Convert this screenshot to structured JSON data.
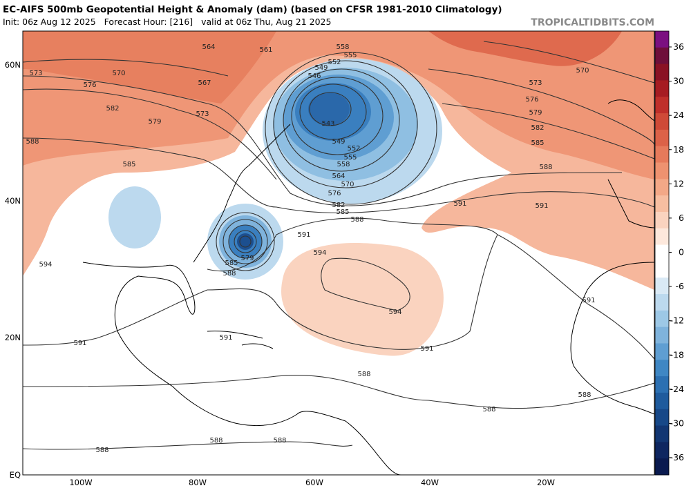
{
  "header": {
    "title": "EC-AIFS 500mb Geopotential Height & Anomaly (dam) (based on CFSR 1981-2010 Climatology)",
    "subtitle": "Init: 06z Aug 12 2025   Forecast Hour: [216]   valid at 06z Thu, Aug 21 2025",
    "site": "TROPICALTIDBITS.COM"
  },
  "lat_labels": [
    "60N",
    "40N",
    "20N",
    "EQ"
  ],
  "lon_labels": [
    "100W",
    "80W",
    "60W",
    "40W",
    "20W"
  ],
  "colorbar": {
    "labels": [
      36,
      30,
      24,
      18,
      12,
      6,
      0,
      -6,
      -12,
      -18,
      -24,
      -30,
      -36
    ]
  },
  "contour_labels": [
    564,
    561,
    558,
    555,
    552,
    549,
    546,
    573,
    570,
    576,
    567,
    582,
    579,
    573,
    543,
    549,
    552,
    555,
    558,
    564,
    570,
    576,
    582,
    585,
    588,
    591,
    585,
    579,
    588,
    594,
    588,
    585,
    594,
    594,
    591,
    591,
    570,
    573,
    576,
    579,
    582,
    585,
    588,
    591,
    591,
    591,
    591,
    588,
    588,
    588,
    588,
    588,
    588
  ]
}
